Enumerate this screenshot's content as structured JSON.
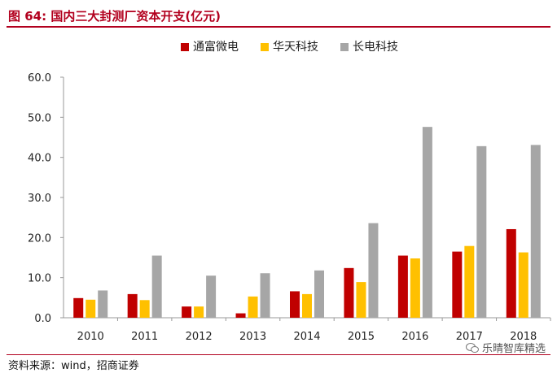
{
  "title": "图 64: 国内三大封测厂资本开支(亿元)",
  "source": "资料来源：wind，招商证券",
  "watermark": "乐晴智库精选",
  "chart_data": {
    "type": "bar",
    "categories": [
      "2010",
      "2011",
      "2012",
      "2013",
      "2014",
      "2015",
      "2016",
      "2017",
      "2018"
    ],
    "series": [
      {
        "name": "通富微电",
        "color": "#c00000",
        "values": [
          4.9,
          5.9,
          2.8,
          1.1,
          6.6,
          12.4,
          15.5,
          16.5,
          22.1
        ]
      },
      {
        "name": "华天科技",
        "color": "#ffc000",
        "values": [
          4.5,
          4.4,
          2.8,
          5.3,
          5.9,
          8.9,
          14.8,
          17.9,
          16.3
        ]
      },
      {
        "name": "长电科技",
        "color": "#a6a6a6",
        "values": [
          6.8,
          15.5,
          10.5,
          11.1,
          11.8,
          23.6,
          47.6,
          42.8,
          43.1
        ]
      }
    ],
    "ylim": [
      0,
      60
    ],
    "yticks": [
      "0.0",
      "10.0",
      "20.0",
      "30.0",
      "40.0",
      "50.0",
      "60.0"
    ],
    "legend_position": "top",
    "grid": false
  }
}
